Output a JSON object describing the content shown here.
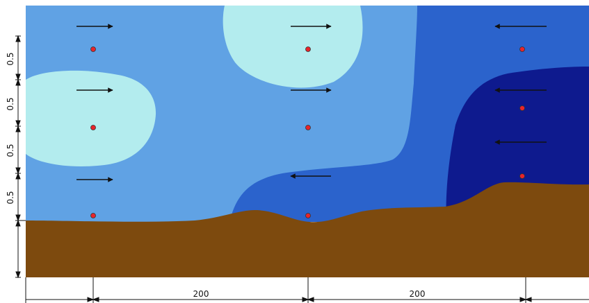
{
  "colors": {
    "background": "#ffffff",
    "zone_light": "#b3ecee",
    "zone_mid": "#60a2e4",
    "zone_blue": "#2b63cc",
    "zone_dark": "#0e1a8e",
    "soil": "#7d4a0e",
    "marker": "#e8242a",
    "line": "#111111"
  },
  "icons": {
    "flow_arrow": "arrow-icon",
    "measurement_point": "red-dot-icon"
  },
  "vertical_dimensions": [
    "0.5",
    "0.5",
    "0.5",
    "0.5"
  ],
  "horizontal_dimensions": [
    "200",
    "200"
  ],
  "verticals": [
    {
      "id": "left",
      "arrows": [
        "right",
        "right",
        "right"
      ],
      "points": 3
    },
    {
      "id": "middle",
      "arrows": [
        "right",
        "right",
        "left"
      ],
      "points": 3
    },
    {
      "id": "right",
      "arrows": [
        "left",
        "left",
        "left"
      ],
      "points": 3
    }
  ]
}
